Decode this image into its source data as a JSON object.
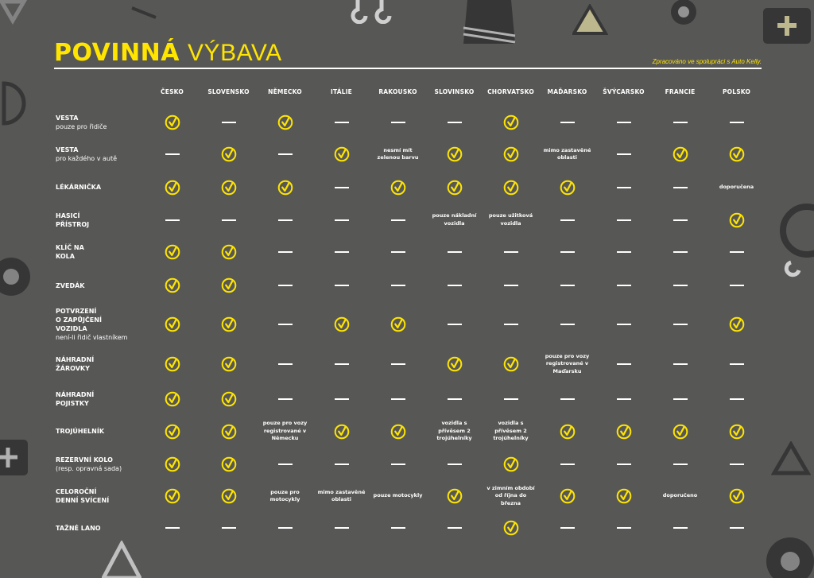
{
  "header": {
    "title_bold": "POVINNÁ",
    "title_light": "VÝBAVA",
    "credit": "Zpracováno ve spolupráci s Auto Kelly."
  },
  "colors": {
    "background": "#575756",
    "accent": "#ffe500",
    "text": "#ffffff"
  },
  "legend": {
    "check": "check-circle-icon (required)",
    "dash": "dash (not required)"
  },
  "table": {
    "columns": [
      "ČESKO",
      "SLOVENSKO",
      "NĚMECKO",
      "ITÁLIE",
      "RAKOUSKO",
      "SLOVINSKO",
      "CHORVATSKO",
      "MAĎARSKO",
      "ŠVÝCARSKO",
      "FRANCIE",
      "POLSKO"
    ],
    "rows": [
      {
        "label": [
          "VESTA"
        ],
        "sub": "pouze pro řidiče",
        "cells": [
          "Y",
          "-",
          "Y",
          "-",
          "-",
          "-",
          "Y",
          "-",
          "-",
          "-",
          "-"
        ]
      },
      {
        "label": [
          "VESTA"
        ],
        "sub": "pro každého v autě",
        "cells": [
          "-",
          "Y",
          "-",
          "Y",
          "nesmí mít zelenou barvu",
          "Y",
          "Y",
          "mimo zastavěné oblasti",
          "-",
          "Y",
          "Y"
        ]
      },
      {
        "label": [
          "LÉKÁRNIČKA"
        ],
        "sub": "",
        "cells": [
          "Y",
          "Y",
          "Y",
          "-",
          "Y",
          "Y",
          "Y",
          "Y",
          "-",
          "-",
          "doporučena"
        ]
      },
      {
        "label": [
          "HASICÍ",
          "PŘÍSTROJ"
        ],
        "sub": "",
        "cells": [
          "-",
          "-",
          "-",
          "-",
          "-",
          "pouze nákladní vozidla",
          "pouze užitková vozidla",
          "-",
          "-",
          "-",
          "Y"
        ]
      },
      {
        "label": [
          "KLÍČ NA",
          "KOLA"
        ],
        "sub": "",
        "cells": [
          "Y",
          "Y",
          "-",
          "-",
          "-",
          "-",
          "-",
          "-",
          "-",
          "-",
          "-"
        ]
      },
      {
        "label": [
          "ZVEDÁK"
        ],
        "sub": "",
        "cells": [
          "Y",
          "Y",
          "-",
          "-",
          "-",
          "-",
          "-",
          "-",
          "-",
          "-",
          "-"
        ]
      },
      {
        "label": [
          "POTVRZENÍ",
          "O ZAPŮJČENÍ",
          "VOZIDLA"
        ],
        "sub": "není-li řidič vlastníkem",
        "cells": [
          "Y",
          "Y",
          "-",
          "Y",
          "Y",
          "-",
          "-",
          "-",
          "-",
          "-",
          "Y"
        ]
      },
      {
        "label": [
          "NÁHRADNÍ",
          "ŽÁROVKY"
        ],
        "sub": "",
        "cells": [
          "Y",
          "Y",
          "-",
          "-",
          "-",
          "Y",
          "Y",
          "pouze pro vozy registrované v Maďarsku",
          "-",
          "-",
          "-"
        ]
      },
      {
        "label": [
          "NÁHRADNÍ",
          "POJISTKY"
        ],
        "sub": "",
        "cells": [
          "Y",
          "Y",
          "-",
          "-",
          "-",
          "-",
          "-",
          "-",
          "-",
          "-",
          "-"
        ]
      },
      {
        "label": [
          "TROJÚHELNÍK"
        ],
        "sub": "",
        "cells": [
          "Y",
          "Y",
          "pouze pro vozy registrované v Německu",
          "Y",
          "Y",
          "vozidla s přívěsem 2 trojúhelníky",
          "vozidla s přívěsem 2 trojúhelníky",
          "Y",
          "Y",
          "Y",
          "Y"
        ]
      },
      {
        "label": [
          "REZERVNÍ KOLO"
        ],
        "sub": "(resp. opravná sada)",
        "cells": [
          "Y",
          "Y",
          "-",
          "-",
          "-",
          "-",
          "Y",
          "-",
          "-",
          "-",
          "-"
        ]
      },
      {
        "label": [
          "CELOROČNÍ",
          "DENNÍ SVÍCENÍ"
        ],
        "sub": "",
        "cells": [
          "Y",
          "Y",
          "pouze pro motocykly",
          "mimo zastavěné oblasti",
          "pouze motocykly",
          "Y",
          "v zimním období od října do března",
          "Y",
          "Y",
          "doporučeno",
          "Y"
        ]
      },
      {
        "label": [
          "TAŽNÉ LANO"
        ],
        "sub": "",
        "cells": [
          "-",
          "-",
          "-",
          "-",
          "-",
          "-",
          "Y",
          "-",
          "-",
          "-",
          "-"
        ]
      }
    ]
  }
}
